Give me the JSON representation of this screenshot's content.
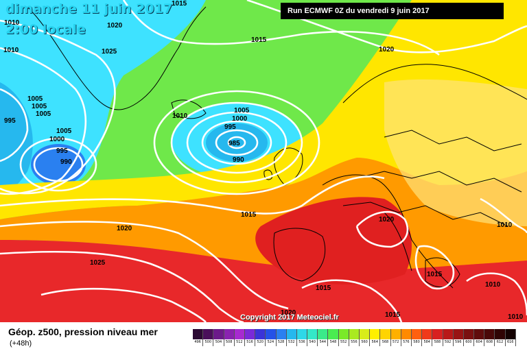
{
  "header": {
    "date_title": "dimanche 11 juin 2017",
    "time_title": "2:00 locale",
    "run_info": "Run ECMWF 0Z du vendredi 9 juin 2017"
  },
  "copyright": "Copyright 2017 Meteociel.fr",
  "footer": {
    "title": "Géop. z500, pression niveau mer",
    "forecast_offset": "(+48h)"
  },
  "pressure_labels": [
    "1015",
    "1010",
    "1020",
    "1010",
    "1025",
    "1015",
    "1020",
    "1005",
    "1005",
    "1005",
    "995",
    "1005",
    "1000",
    "995",
    "990",
    "1010",
    "1005",
    "1000",
    "995",
    "985",
    "990",
    "1015",
    "1020",
    "1025",
    "1020",
    "1010",
    "1015",
    "1015",
    "1015",
    "1010",
    "1010",
    "1020"
  ],
  "colors": {
    "low_center": "#4fe6ff",
    "mid_green": "#5ae85a",
    "ridge_yellow": "#ffe600",
    "high_red": "#e8282a",
    "isobar": "#ffffff",
    "border": "#000000"
  },
  "scale": [
    {
      "value": "496",
      "color": "#2c0a33"
    },
    {
      "value": "500",
      "color": "#4a0f5a"
    },
    {
      "value": "504",
      "color": "#6c1a8a"
    },
    {
      "value": "508",
      "color": "#8a22b0"
    },
    {
      "value": "512",
      "color": "#a72ad0"
    },
    {
      "value": "516",
      "color": "#7a2ad8"
    },
    {
      "value": "520",
      "color": "#3a34d8"
    },
    {
      "value": "524",
      "color": "#2452e8"
    },
    {
      "value": "528",
      "color": "#2a80f0"
    },
    {
      "value": "532",
      "color": "#26b8ee"
    },
    {
      "value": "536",
      "color": "#2ed8e8"
    },
    {
      "value": "540",
      "color": "#34e8c8"
    },
    {
      "value": "544",
      "color": "#3aea8a"
    },
    {
      "value": "548",
      "color": "#4aec50"
    },
    {
      "value": "552",
      "color": "#7aea28"
    },
    {
      "value": "556",
      "color": "#aaea20"
    },
    {
      "value": "560",
      "color": "#d8ec1a"
    },
    {
      "value": "564",
      "color": "#fff000"
    },
    {
      "value": "568",
      "color": "#ffd400"
    },
    {
      "value": "572",
      "color": "#ffb000"
    },
    {
      "value": "576",
      "color": "#ff8a00"
    },
    {
      "value": "580",
      "color": "#ff6010"
    },
    {
      "value": "584",
      "color": "#f03a1a"
    },
    {
      "value": "588",
      "color": "#d82020"
    },
    {
      "value": "592",
      "color": "#b81818"
    },
    {
      "value": "596",
      "color": "#981414"
    },
    {
      "value": "600",
      "color": "#7a1010"
    },
    {
      "value": "604",
      "color": "#600c0c"
    },
    {
      "value": "608",
      "color": "#4a0808"
    },
    {
      "value": "612",
      "color": "#300404"
    },
    {
      "value": "616",
      "color": "#140202"
    }
  ]
}
